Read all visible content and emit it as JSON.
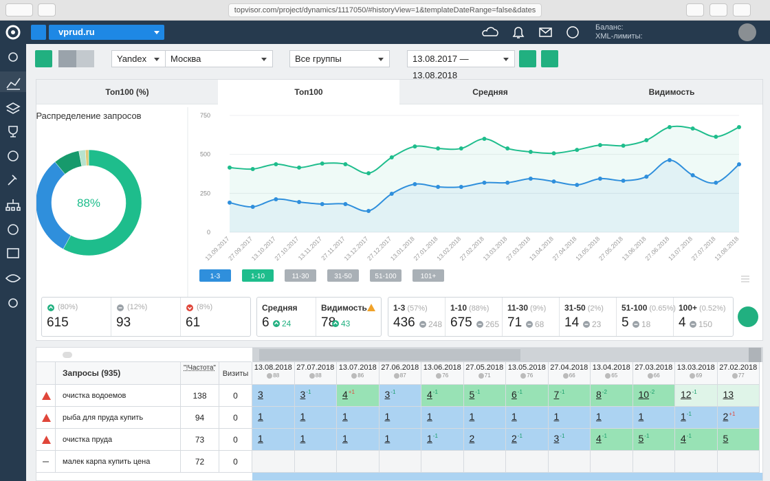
{
  "browser": {
    "url": "topvisor.com/project/dynamics/1117050/#historyView=1&templateDateRange=false&dates"
  },
  "header": {
    "project": "vprud.ru",
    "balance_label": "Баланс:",
    "xml_label": "XML-лимиты:"
  },
  "toolbar": {
    "engine": "Yandex",
    "region": "Москва",
    "group": "Все группы",
    "date_range": "13.08.2017 — 13.08.2018"
  },
  "tabs": [
    "Топ100 (%)",
    "Топ100",
    "Средняя",
    "Видимость"
  ],
  "active_tab": 1,
  "donut": {
    "type": "pie",
    "title": "Распределение запросов",
    "center_label": "88%",
    "values": [
      58,
      31,
      8,
      2,
      1
    ],
    "colors": [
      "#1ebd8c",
      "#2f8fdc",
      "#179a6c",
      "#b7e3cf",
      "#e0c978"
    ]
  },
  "line_chart": {
    "type": "line",
    "x": [
      "13.09.2017",
      "27.09.2017",
      "13.10.2017",
      "27.10.2017",
      "13.11.2017",
      "27.11.2017",
      "13.12.2017",
      "27.12.2017",
      "13.01.2018",
      "27.01.2018",
      "13.02.2018",
      "27.02.2018",
      "13.03.2018",
      "27.03.2018",
      "13.04.2018",
      "27.04.2018",
      "13.05.2018",
      "27.05.2018",
      "13.06.2018",
      "27.06.2018",
      "13.07.2018",
      "27.07.2018",
      "13.08.2018"
    ],
    "series": [
      {
        "name": "1-3",
        "color": "#2f8fdc",
        "values": [
          190,
          163,
          212,
          194,
          181,
          181,
          137,
          247,
          309,
          291,
          291,
          318,
          318,
          344,
          326,
          304,
          344,
          331,
          357,
          463,
          366,
          318,
          436
        ]
      },
      {
        "name": "1-10",
        "color": "#1ebd8c",
        "values": [
          415,
          406,
          437,
          415,
          441,
          437,
          379,
          481,
          551,
          538,
          538,
          600,
          538,
          516,
          507,
          529,
          560,
          556,
          591,
          675,
          666,
          613,
          675
        ]
      }
    ],
    "inactive_ranges": [
      "11-30",
      "31-50",
      "51-100",
      "101+"
    ],
    "ylim": [
      0,
      750
    ],
    "yticks": [
      0,
      250,
      500,
      750
    ],
    "grid": true
  },
  "summary": {
    "dynamics": [
      {
        "pct": "(80%)",
        "value": 615,
        "icon": "up"
      },
      {
        "pct": "(12%)",
        "value": 93,
        "icon": "neutral"
      },
      {
        "pct": "(8%)",
        "value": 61,
        "icon": "down"
      }
    ],
    "quality": [
      {
        "label": "Средняя",
        "value": 6,
        "change": 24,
        "warning": false
      },
      {
        "label": "Видимость",
        "value": 78,
        "change": 43,
        "warning": true
      }
    ],
    "ranges": [
      {
        "label": "1-3",
        "pct": "(57%)",
        "value": 436,
        "prev": 248
      },
      {
        "label": "1-10",
        "pct": "(88%)",
        "value": 675,
        "prev": 265
      },
      {
        "label": "11-30",
        "pct": "(9%)",
        "value": 71,
        "prev": 68
      },
      {
        "label": "31-50",
        "pct": "(2%)",
        "value": 14,
        "prev": 23
      },
      {
        "label": "51-100",
        "pct": "(0.65%)",
        "value": 5,
        "prev": 18
      },
      {
        "label": "100+",
        "pct": "(0.52%)",
        "value": 4,
        "prev": 150
      }
    ]
  },
  "table": {
    "columns": {
      "query": "Запросы (935)",
      "frequency": "\"!Частота\"",
      "visits": "Визиты"
    },
    "dates": [
      {
        "date": "13.08.2018",
        "visibility": 88
      },
      {
        "date": "27.07.2018",
        "visibility": 88
      },
      {
        "date": "13.07.2018",
        "visibility": 86
      },
      {
        "date": "27.06.2018",
        "visibility": 87
      },
      {
        "date": "13.06.2018",
        "visibility": 76
      },
      {
        "date": "27.05.2018",
        "visibility": 71
      },
      {
        "date": "13.05.2018",
        "visibility": 76
      },
      {
        "date": "27.04.2018",
        "visibility": 66
      },
      {
        "date": "13.04.2018",
        "visibility": 65
      },
      {
        "date": "27.03.2018",
        "visibility": 66
      },
      {
        "date": "13.03.2018",
        "visibility": 69
      },
      {
        "date": "27.02.2018",
        "visibility": 77
      }
    ],
    "rows": [
      {
        "query": "очистка водоемов",
        "frequency": 138,
        "visits": 0,
        "status": "warning",
        "positions": [
          3,
          3,
          4,
          3,
          4,
          5,
          6,
          7,
          8,
          10,
          12,
          13
        ],
        "changes": [
          null,
          "-1",
          "+1",
          "-1",
          "-1",
          "-1",
          "-1",
          "-1",
          "-2",
          "-2",
          "-1",
          null
        ]
      },
      {
        "query": "рыба для пруда купить",
        "frequency": 94,
        "visits": 0,
        "status": "warning",
        "positions": [
          1,
          1,
          1,
          1,
          1,
          1,
          1,
          1,
          1,
          1,
          1,
          2
        ],
        "changes": [
          null,
          null,
          null,
          null,
          null,
          null,
          null,
          null,
          null,
          null,
          "-1",
          "+1"
        ]
      },
      {
        "query": "очистка пруда",
        "frequency": 73,
        "visits": 0,
        "status": "warning",
        "positions": [
          1,
          1,
          1,
          1,
          1,
          2,
          2,
          3,
          4,
          5,
          4,
          5
        ],
        "changes": [
          null,
          null,
          null,
          null,
          "-1",
          null,
          "-1",
          "-1",
          "-1",
          "-1",
          "-1",
          null
        ]
      },
      {
        "query": "малек карпа купить цена",
        "frequency": 72,
        "visits": 0,
        "status": "none",
        "positions": [
          null,
          null,
          null,
          null,
          null,
          null,
          null,
          null,
          null,
          null,
          null,
          null
        ],
        "changes": [
          null,
          null,
          null,
          null,
          null,
          null,
          null,
          null,
          null,
          null,
          null,
          null
        ]
      }
    ]
  }
}
